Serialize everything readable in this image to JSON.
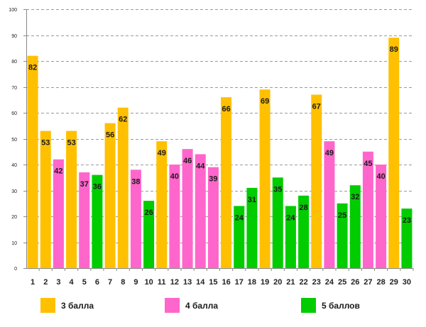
{
  "chart_data": {
    "type": "bar",
    "title": "",
    "xlabel": "",
    "ylabel": "",
    "ylim": [
      0,
      100
    ],
    "yticks": [
      "0",
      "10",
      "20",
      "30",
      "40",
      "50",
      "60",
      "70",
      "80",
      "90",
      "100"
    ],
    "grid": "horizontal-dashed",
    "categories": [
      "1",
      "2",
      "3",
      "4",
      "5",
      "6",
      "7",
      "8",
      "9",
      "10",
      "11",
      "12",
      "13",
      "14",
      "15",
      "16",
      "17",
      "18",
      "19",
      "20",
      "21",
      "22",
      "23",
      "24",
      "25",
      "26",
      "27",
      "28",
      "29",
      "30"
    ],
    "values": [
      82,
      53,
      42,
      53,
      37,
      36,
      56,
      62,
      38,
      26,
      49,
      40,
      46,
      44,
      39,
      66,
      24,
      31,
      69,
      35,
      24,
      28,
      67,
      49,
      25,
      32,
      45,
      40,
      89,
      23
    ],
    "bar_series": [
      0,
      0,
      1,
      0,
      1,
      2,
      0,
      0,
      1,
      2,
      0,
      1,
      1,
      1,
      1,
      0,
      2,
      2,
      0,
      2,
      2,
      2,
      0,
      1,
      2,
      2,
      1,
      1,
      0,
      2
    ],
    "series": [
      {
        "name": "3 балла",
        "color": "#FFC000"
      },
      {
        "name": "4 балла",
        "color": "#FF66CC"
      },
      {
        "name": "5 баллов",
        "color": "#00CC00"
      }
    ]
  }
}
